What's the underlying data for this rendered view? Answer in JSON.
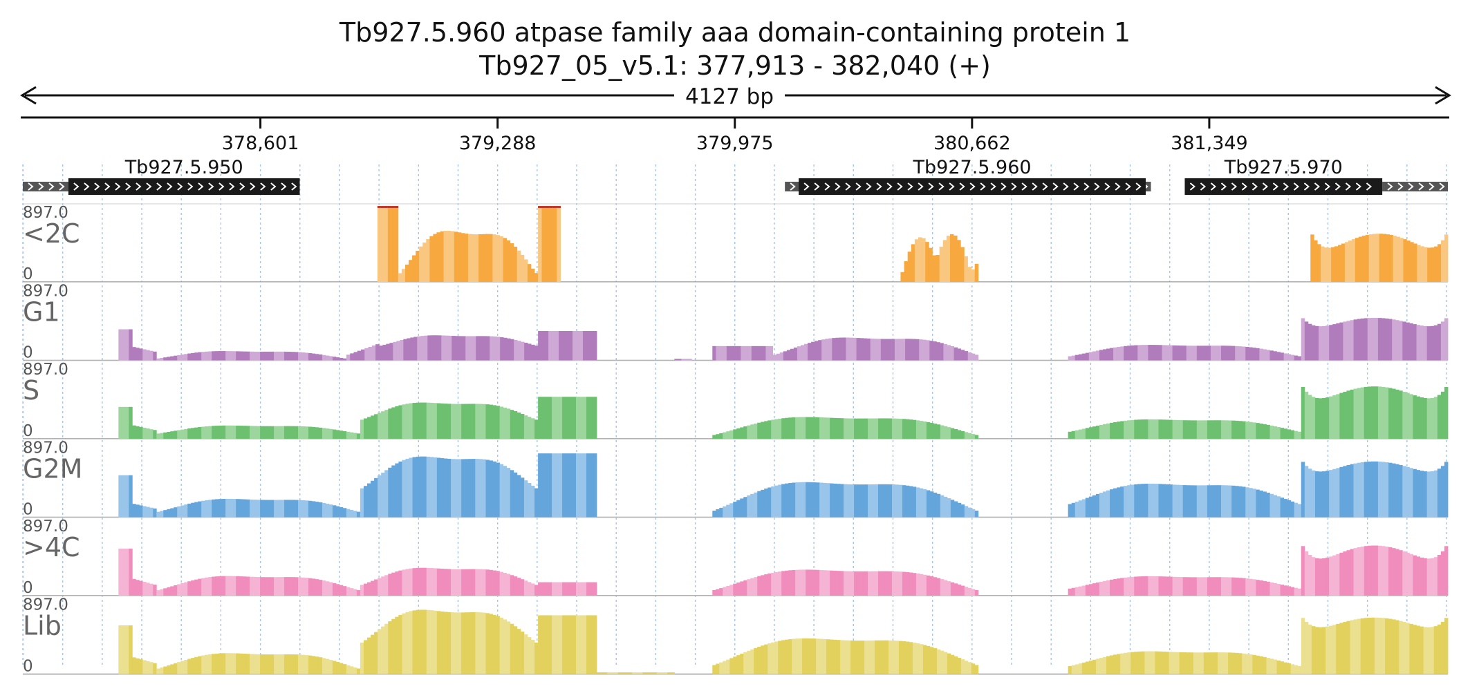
{
  "header": {
    "title_line1": "Tb927.5.960  atpase family aaa domain-containing protein 1",
    "title_line2": "Tb927_05_v5.1: 377,913 - 382,040 (+)",
    "span_label": "4127 bp"
  },
  "chart_data": {
    "type": "area",
    "region": {
      "chrom": "Tb927_05_v5.1",
      "start": 377913,
      "end": 382040,
      "strand": "+"
    },
    "x_ticks": [
      {
        "pos": 378601,
        "label": "378,601"
      },
      {
        "pos": 379288,
        "label": "379,288"
      },
      {
        "pos": 379975,
        "label": "379,975"
      },
      {
        "pos": 380662,
        "label": "380,662"
      },
      {
        "pos": 381349,
        "label": "381,349"
      }
    ],
    "genes": [
      {
        "name": "Tb927.5.950",
        "start": 378045,
        "end": 378715,
        "utr_start": 377913,
        "utr_end": 378045
      },
      {
        "name": "Tb927.5.960",
        "start": 380160,
        "end": 381165,
        "utr_start": 380120,
        "utr_end": 381180
      },
      {
        "name": "Tb927.5.970",
        "start": 381278,
        "end": 381850,
        "utr_start": 381850,
        "utr_end": 382040
      }
    ],
    "y_scale": {
      "max_label": "897.0",
      "min_label": "0",
      "ylim": [
        0,
        897
      ]
    },
    "tracks": [
      {
        "name": "<2C",
        "color": "#f7a940",
        "light": "#f9c77f",
        "segments": [
          {
            "start": 378940,
            "end": 379000,
            "shape": "plateau",
            "value": 897
          },
          {
            "start": 379000,
            "end": 379405,
            "shape": "hill",
            "value": 780,
            "base": 80
          },
          {
            "start": 379405,
            "end": 379470,
            "shape": "plateau",
            "value": 897
          },
          {
            "start": 380455,
            "end": 380680,
            "shape": "double",
            "value": 600,
            "base": 50
          },
          {
            "start": 381642,
            "end": 382040,
            "shape": "bowl",
            "value": 897,
            "base": 180
          }
        ]
      },
      {
        "name": "G1",
        "color": "#b07cbc",
        "light": "#cfa9d5",
        "segments": [
          {
            "start": 378190,
            "end": 378300,
            "shape": "spike",
            "value": 370,
            "base": 200
          },
          {
            "start": 378300,
            "end": 378850,
            "shape": "hill",
            "value": 140,
            "base": 20
          },
          {
            "start": 378850,
            "end": 378945,
            "shape": "ramp",
            "value": 200,
            "base": 60
          },
          {
            "start": 378945,
            "end": 379405,
            "shape": "hill",
            "value": 340,
            "base": 170
          },
          {
            "start": 379405,
            "end": 379575,
            "shape": "plateau",
            "value": 350
          },
          {
            "start": 379800,
            "end": 379850,
            "shape": "plateau",
            "value": 18
          },
          {
            "start": 379910,
            "end": 380085,
            "shape": "plateau",
            "value": 170
          },
          {
            "start": 380085,
            "end": 380680,
            "shape": "hill",
            "value": 340,
            "base": 60
          },
          {
            "start": 380940,
            "end": 381615,
            "shape": "hill",
            "value": 230,
            "base": 45
          },
          {
            "start": 381615,
            "end": 382040,
            "shape": "bowl",
            "value": 700,
            "base": 270
          }
        ]
      },
      {
        "name": "S",
        "color": "#6dc070",
        "light": "#9cd69d",
        "segments": [
          {
            "start": 378190,
            "end": 378300,
            "shape": "spike",
            "value": 380,
            "base": 200
          },
          {
            "start": 378300,
            "end": 378890,
            "shape": "hill",
            "value": 190,
            "base": 60
          },
          {
            "start": 378890,
            "end": 379405,
            "shape": "hill",
            "value": 500,
            "base": 220
          },
          {
            "start": 379405,
            "end": 379575,
            "shape": "plateau",
            "value": 500
          },
          {
            "start": 379910,
            "end": 380680,
            "shape": "hill",
            "value": 330,
            "base": 40
          },
          {
            "start": 380940,
            "end": 381615,
            "shape": "hill",
            "value": 280,
            "base": 80
          },
          {
            "start": 381615,
            "end": 382040,
            "shape": "bowl",
            "value": 897,
            "base": 290
          }
        ]
      },
      {
        "name": "G2M",
        "color": "#64a6dc",
        "light": "#99c5ea",
        "segments": [
          {
            "start": 378190,
            "end": 378300,
            "shape": "spike",
            "value": 500,
            "base": 200
          },
          {
            "start": 378300,
            "end": 378890,
            "shape": "hill",
            "value": 270,
            "base": 60
          },
          {
            "start": 378890,
            "end": 379405,
            "shape": "hill",
            "value": 850,
            "base": 330
          },
          {
            "start": 379405,
            "end": 379575,
            "shape": "plateau",
            "value": 760
          },
          {
            "start": 379910,
            "end": 380680,
            "shape": "hill",
            "value": 530,
            "base": 70
          },
          {
            "start": 380940,
            "end": 381615,
            "shape": "hill",
            "value": 480,
            "base": 150
          },
          {
            "start": 381615,
            "end": 382040,
            "shape": "bowl",
            "value": 897,
            "base": 380
          }
        ]
      },
      {
        "name": ">4C",
        "color": "#f08dbc",
        "light": "#f5b4d4",
        "segments": [
          {
            "start": 378190,
            "end": 378300,
            "shape": "spike",
            "value": 560,
            "base": 250
          },
          {
            "start": 378300,
            "end": 378890,
            "shape": "hill",
            "value": 290,
            "base": 60
          },
          {
            "start": 378890,
            "end": 379405,
            "shape": "hill",
            "value": 400,
            "base": 120
          },
          {
            "start": 379405,
            "end": 379575,
            "shape": "plateau",
            "value": 160
          },
          {
            "start": 379910,
            "end": 380680,
            "shape": "hill",
            "value": 390,
            "base": 60
          },
          {
            "start": 380940,
            "end": 381615,
            "shape": "hill",
            "value": 280,
            "base": 80
          },
          {
            "start": 381615,
            "end": 382040,
            "shape": "bowl",
            "value": 897,
            "base": 230
          }
        ]
      },
      {
        "name": "Lib",
        "color": "#e2d15c",
        "light": "#ebdf90",
        "segments": [
          {
            "start": 378190,
            "end": 378300,
            "shape": "spike",
            "value": 580,
            "base": 250
          },
          {
            "start": 378300,
            "end": 378890,
            "shape": "hill",
            "value": 310,
            "base": 60
          },
          {
            "start": 378890,
            "end": 379405,
            "shape": "hill",
            "value": 897,
            "base": 360
          },
          {
            "start": 379405,
            "end": 379575,
            "shape": "plateau",
            "value": 700
          },
          {
            "start": 379575,
            "end": 379800,
            "shape": "plateau",
            "value": 20
          },
          {
            "start": 379910,
            "end": 380680,
            "shape": "hill",
            "value": 530,
            "base": 100
          },
          {
            "start": 380940,
            "end": 381615,
            "shape": "hill",
            "value": 330,
            "base": 90
          },
          {
            "start": 381615,
            "end": 382040,
            "shape": "bowl",
            "value": 897,
            "base": 400
          }
        ]
      }
    ]
  }
}
